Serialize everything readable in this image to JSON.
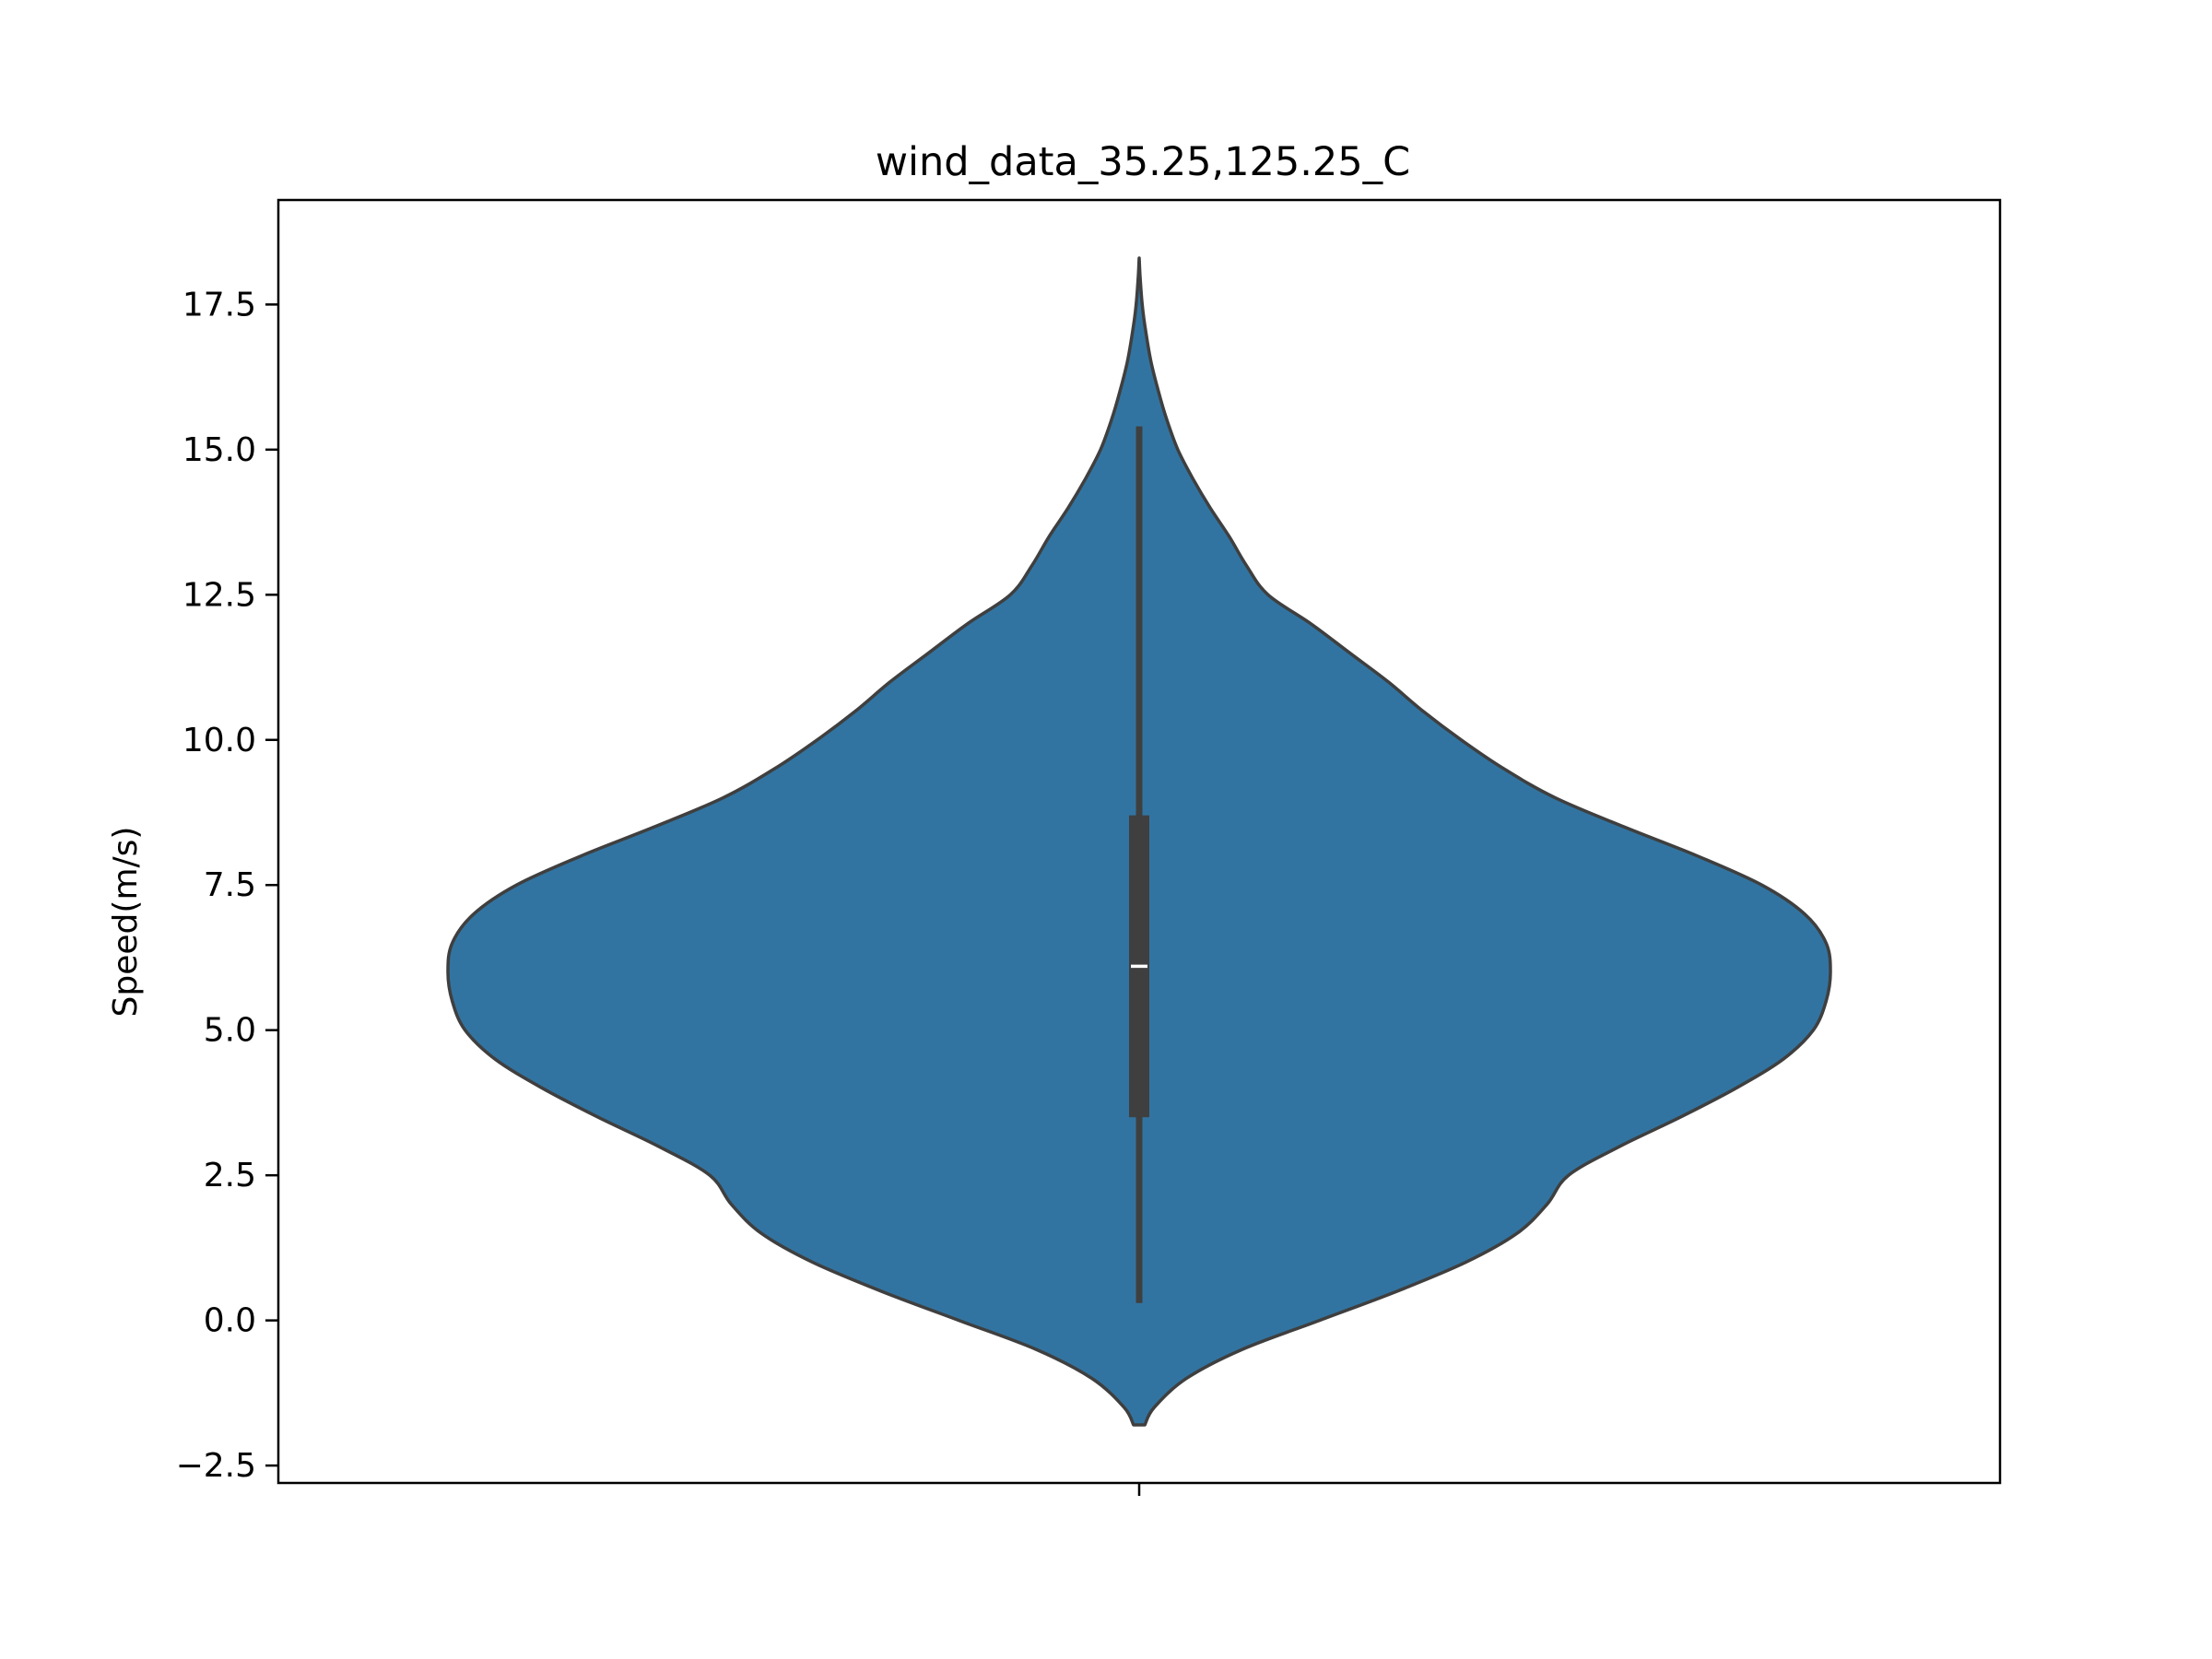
{
  "chart_data": {
    "type": "violin",
    "title": "wind_data_35.25,125.25_C",
    "xlabel": "",
    "ylabel": "Speed(m/s)",
    "ylim": [
      -2.8,
      19.3
    ],
    "yticks": [
      -2.5,
      0.0,
      2.5,
      5.0,
      7.5,
      10.0,
      12.5,
      15.0,
      17.5
    ],
    "ytick_labels": [
      "−2.5",
      "0.0",
      "2.5",
      "5.0",
      "7.5",
      "10.0",
      "12.5",
      "15.0",
      "17.5"
    ],
    "grid": false,
    "colors": {
      "violin_fill": "#3274a1",
      "violin_edge": "#3f3f3f",
      "box": "#3f3f3f",
      "median": "#ffffff"
    },
    "series": [
      {
        "box": {
          "whisker_low": 0.3,
          "q1": 3.5,
          "median": 6.1,
          "q3": 8.7,
          "whisker_high": 15.4
        },
        "kde_range": [
          -1.8,
          18.3
        ],
        "density_profile": [
          [
            -1.8,
            0.013
          ],
          [
            -1.5,
            0.035
          ],
          [
            -1.0,
            0.11
          ],
          [
            -0.5,
            0.24
          ],
          [
            0.0,
            0.42
          ],
          [
            0.5,
            0.6
          ],
          [
            1.0,
            0.76
          ],
          [
            1.5,
            0.88
          ],
          [
            2.0,
            0.95
          ],
          [
            2.5,
            1.0
          ],
          [
            3.0,
            1.12
          ],
          [
            3.5,
            1.26
          ],
          [
            4.0,
            1.39
          ],
          [
            4.5,
            1.5
          ],
          [
            5.0,
            1.57
          ],
          [
            5.5,
            1.6
          ],
          [
            6.0,
            1.61
          ],
          [
            6.5,
            1.6
          ],
          [
            7.0,
            1.55
          ],
          [
            7.5,
            1.45
          ],
          [
            8.0,
            1.3
          ],
          [
            8.5,
            1.13
          ],
          [
            9.0,
            0.97
          ],
          [
            9.5,
            0.85
          ],
          [
            10.0,
            0.75
          ],
          [
            10.5,
            0.66
          ],
          [
            11.0,
            0.58
          ],
          [
            11.5,
            0.49
          ],
          [
            12.0,
            0.4
          ],
          [
            12.5,
            0.3
          ],
          [
            13.0,
            0.25
          ],
          [
            13.5,
            0.21
          ],
          [
            14.0,
            0.165
          ],
          [
            14.5,
            0.125
          ],
          [
            15.0,
            0.09
          ],
          [
            15.5,
            0.065
          ],
          [
            16.0,
            0.045
          ],
          [
            16.5,
            0.028
          ],
          [
            17.0,
            0.016
          ],
          [
            17.5,
            0.007
          ],
          [
            18.0,
            0.002
          ],
          [
            18.3,
            0.0
          ]
        ]
      }
    ]
  }
}
